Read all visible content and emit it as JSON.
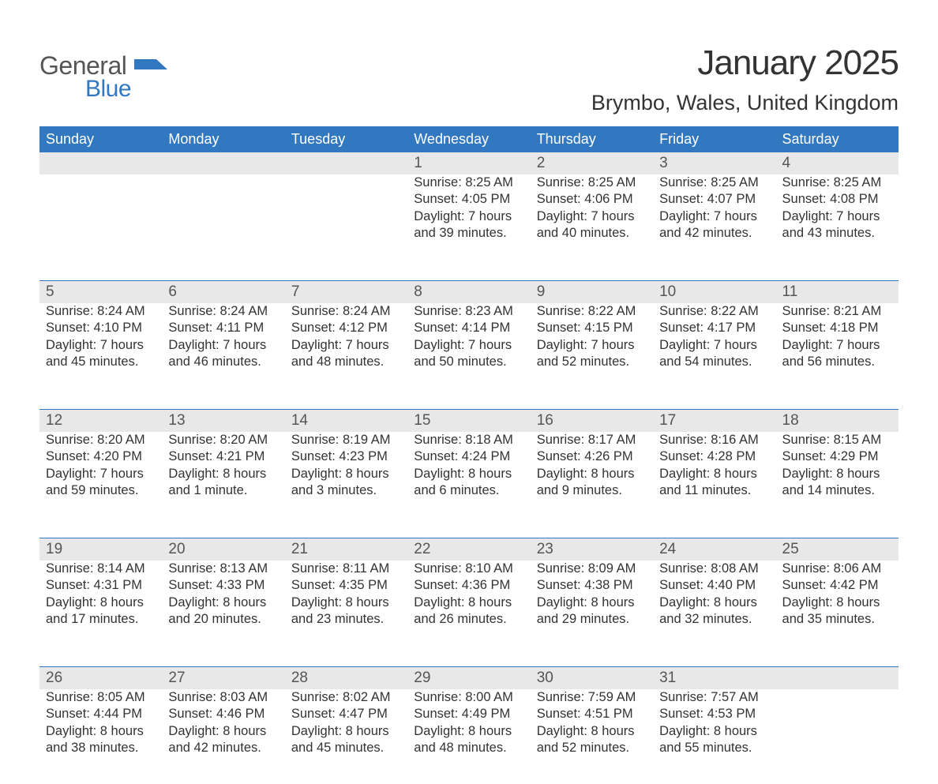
{
  "logo": {
    "text1": "General",
    "text2": "Blue",
    "icon_color": "#3278c0"
  },
  "title": "January 2025",
  "location": "Brymbo, Wales, United Kingdom",
  "colors": {
    "header_bg": "#3278c0",
    "header_text": "#ffffff",
    "daynum_bg": "#e8e8e8",
    "text": "#333333",
    "border": "#3278c0"
  },
  "fonts": {
    "title_size": 44,
    "location_size": 27,
    "weekday_size": 18,
    "daynum_size": 19,
    "body_size": 16.5
  },
  "weekdays": [
    "Sunday",
    "Monday",
    "Tuesday",
    "Wednesday",
    "Thursday",
    "Friday",
    "Saturday"
  ],
  "weeks": [
    [
      null,
      null,
      null,
      {
        "day": "1",
        "sunrise": "Sunrise: 8:25 AM",
        "sunset": "Sunset: 4:05 PM",
        "daylight1": "Daylight: 7 hours",
        "daylight2": "and 39 minutes."
      },
      {
        "day": "2",
        "sunrise": "Sunrise: 8:25 AM",
        "sunset": "Sunset: 4:06 PM",
        "daylight1": "Daylight: 7 hours",
        "daylight2": "and 40 minutes."
      },
      {
        "day": "3",
        "sunrise": "Sunrise: 8:25 AM",
        "sunset": "Sunset: 4:07 PM",
        "daylight1": "Daylight: 7 hours",
        "daylight2": "and 42 minutes."
      },
      {
        "day": "4",
        "sunrise": "Sunrise: 8:25 AM",
        "sunset": "Sunset: 4:08 PM",
        "daylight1": "Daylight: 7 hours",
        "daylight2": "and 43 minutes."
      }
    ],
    [
      {
        "day": "5",
        "sunrise": "Sunrise: 8:24 AM",
        "sunset": "Sunset: 4:10 PM",
        "daylight1": "Daylight: 7 hours",
        "daylight2": "and 45 minutes."
      },
      {
        "day": "6",
        "sunrise": "Sunrise: 8:24 AM",
        "sunset": "Sunset: 4:11 PM",
        "daylight1": "Daylight: 7 hours",
        "daylight2": "and 46 minutes."
      },
      {
        "day": "7",
        "sunrise": "Sunrise: 8:24 AM",
        "sunset": "Sunset: 4:12 PM",
        "daylight1": "Daylight: 7 hours",
        "daylight2": "and 48 minutes."
      },
      {
        "day": "8",
        "sunrise": "Sunrise: 8:23 AM",
        "sunset": "Sunset: 4:14 PM",
        "daylight1": "Daylight: 7 hours",
        "daylight2": "and 50 minutes."
      },
      {
        "day": "9",
        "sunrise": "Sunrise: 8:22 AM",
        "sunset": "Sunset: 4:15 PM",
        "daylight1": "Daylight: 7 hours",
        "daylight2": "and 52 minutes."
      },
      {
        "day": "10",
        "sunrise": "Sunrise: 8:22 AM",
        "sunset": "Sunset: 4:17 PM",
        "daylight1": "Daylight: 7 hours",
        "daylight2": "and 54 minutes."
      },
      {
        "day": "11",
        "sunrise": "Sunrise: 8:21 AM",
        "sunset": "Sunset: 4:18 PM",
        "daylight1": "Daylight: 7 hours",
        "daylight2": "and 56 minutes."
      }
    ],
    [
      {
        "day": "12",
        "sunrise": "Sunrise: 8:20 AM",
        "sunset": "Sunset: 4:20 PM",
        "daylight1": "Daylight: 7 hours",
        "daylight2": "and 59 minutes."
      },
      {
        "day": "13",
        "sunrise": "Sunrise: 8:20 AM",
        "sunset": "Sunset: 4:21 PM",
        "daylight1": "Daylight: 8 hours",
        "daylight2": "and 1 minute."
      },
      {
        "day": "14",
        "sunrise": "Sunrise: 8:19 AM",
        "sunset": "Sunset: 4:23 PM",
        "daylight1": "Daylight: 8 hours",
        "daylight2": "and 3 minutes."
      },
      {
        "day": "15",
        "sunrise": "Sunrise: 8:18 AM",
        "sunset": "Sunset: 4:24 PM",
        "daylight1": "Daylight: 8 hours",
        "daylight2": "and 6 minutes."
      },
      {
        "day": "16",
        "sunrise": "Sunrise: 8:17 AM",
        "sunset": "Sunset: 4:26 PM",
        "daylight1": "Daylight: 8 hours",
        "daylight2": "and 9 minutes."
      },
      {
        "day": "17",
        "sunrise": "Sunrise: 8:16 AM",
        "sunset": "Sunset: 4:28 PM",
        "daylight1": "Daylight: 8 hours",
        "daylight2": "and 11 minutes."
      },
      {
        "day": "18",
        "sunrise": "Sunrise: 8:15 AM",
        "sunset": "Sunset: 4:29 PM",
        "daylight1": "Daylight: 8 hours",
        "daylight2": "and 14 minutes."
      }
    ],
    [
      {
        "day": "19",
        "sunrise": "Sunrise: 8:14 AM",
        "sunset": "Sunset: 4:31 PM",
        "daylight1": "Daylight: 8 hours",
        "daylight2": "and 17 minutes."
      },
      {
        "day": "20",
        "sunrise": "Sunrise: 8:13 AM",
        "sunset": "Sunset: 4:33 PM",
        "daylight1": "Daylight: 8 hours",
        "daylight2": "and 20 minutes."
      },
      {
        "day": "21",
        "sunrise": "Sunrise: 8:11 AM",
        "sunset": "Sunset: 4:35 PM",
        "daylight1": "Daylight: 8 hours",
        "daylight2": "and 23 minutes."
      },
      {
        "day": "22",
        "sunrise": "Sunrise: 8:10 AM",
        "sunset": "Sunset: 4:36 PM",
        "daylight1": "Daylight: 8 hours",
        "daylight2": "and 26 minutes."
      },
      {
        "day": "23",
        "sunrise": "Sunrise: 8:09 AM",
        "sunset": "Sunset: 4:38 PM",
        "daylight1": "Daylight: 8 hours",
        "daylight2": "and 29 minutes."
      },
      {
        "day": "24",
        "sunrise": "Sunrise: 8:08 AM",
        "sunset": "Sunset: 4:40 PM",
        "daylight1": "Daylight: 8 hours",
        "daylight2": "and 32 minutes."
      },
      {
        "day": "25",
        "sunrise": "Sunrise: 8:06 AM",
        "sunset": "Sunset: 4:42 PM",
        "daylight1": "Daylight: 8 hours",
        "daylight2": "and 35 minutes."
      }
    ],
    [
      {
        "day": "26",
        "sunrise": "Sunrise: 8:05 AM",
        "sunset": "Sunset: 4:44 PM",
        "daylight1": "Daylight: 8 hours",
        "daylight2": "and 38 minutes."
      },
      {
        "day": "27",
        "sunrise": "Sunrise: 8:03 AM",
        "sunset": "Sunset: 4:46 PM",
        "daylight1": "Daylight: 8 hours",
        "daylight2": "and 42 minutes."
      },
      {
        "day": "28",
        "sunrise": "Sunrise: 8:02 AM",
        "sunset": "Sunset: 4:47 PM",
        "daylight1": "Daylight: 8 hours",
        "daylight2": "and 45 minutes."
      },
      {
        "day": "29",
        "sunrise": "Sunrise: 8:00 AM",
        "sunset": "Sunset: 4:49 PM",
        "daylight1": "Daylight: 8 hours",
        "daylight2": "and 48 minutes."
      },
      {
        "day": "30",
        "sunrise": "Sunrise: 7:59 AM",
        "sunset": "Sunset: 4:51 PM",
        "daylight1": "Daylight: 8 hours",
        "daylight2": "and 52 minutes."
      },
      {
        "day": "31",
        "sunrise": "Sunrise: 7:57 AM",
        "sunset": "Sunset: 4:53 PM",
        "daylight1": "Daylight: 8 hours",
        "daylight2": "and 55 minutes."
      },
      null
    ]
  ]
}
